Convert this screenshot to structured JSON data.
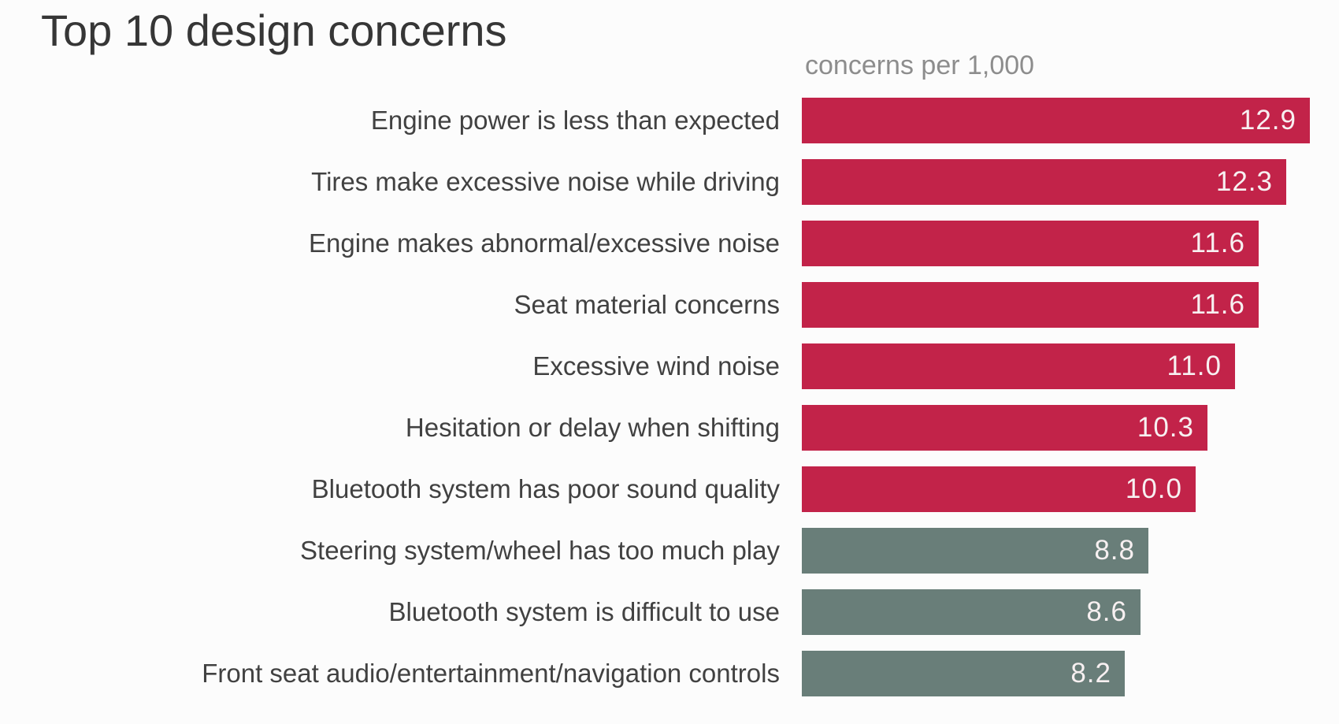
{
  "page": {
    "background_color": "#fcfcfc"
  },
  "chart_data": {
    "type": "bar",
    "orientation": "horizontal",
    "title": "Top 10 design concerns",
    "subtitle": "concerns per 1,000",
    "categories": [
      "Engine power is less than expected",
      "Tires make excessive noise while driving",
      "Engine makes abnormal/excessive noise",
      "Seat material concerns",
      "Excessive wind noise",
      "Hesitation or delay when shifting",
      "Bluetooth system has poor sound quality",
      "Steering system/wheel has too much play",
      "Bluetooth system is difficult to use",
      "Front seat audio/entertainment/navigation controls"
    ],
    "values": [
      12.9,
      12.3,
      11.6,
      11.6,
      11.0,
      10.3,
      10.0,
      8.8,
      8.6,
      8.2
    ],
    "value_labels": [
      "12.9",
      "12.3",
      "11.6",
      "11.6",
      "11.0",
      "10.3",
      "10.0",
      "8.8",
      "8.6",
      "8.2"
    ],
    "bar_colors": [
      "#c22349",
      "#c22349",
      "#c22349",
      "#c22349",
      "#c22349",
      "#c22349",
      "#c22349",
      "#697e79",
      "#697e79",
      "#697e79"
    ],
    "highlight_color": "#c22349",
    "muted_color": "#697e79",
    "value_label_color": "#f7f0f1",
    "title_color": "#363636",
    "subtitle_color": "#8d8d8d",
    "category_label_color": "#414141",
    "xlim": [
      0,
      13.64
    ],
    "grid": false,
    "legend": false,
    "value_labels_position": "inside-end"
  }
}
